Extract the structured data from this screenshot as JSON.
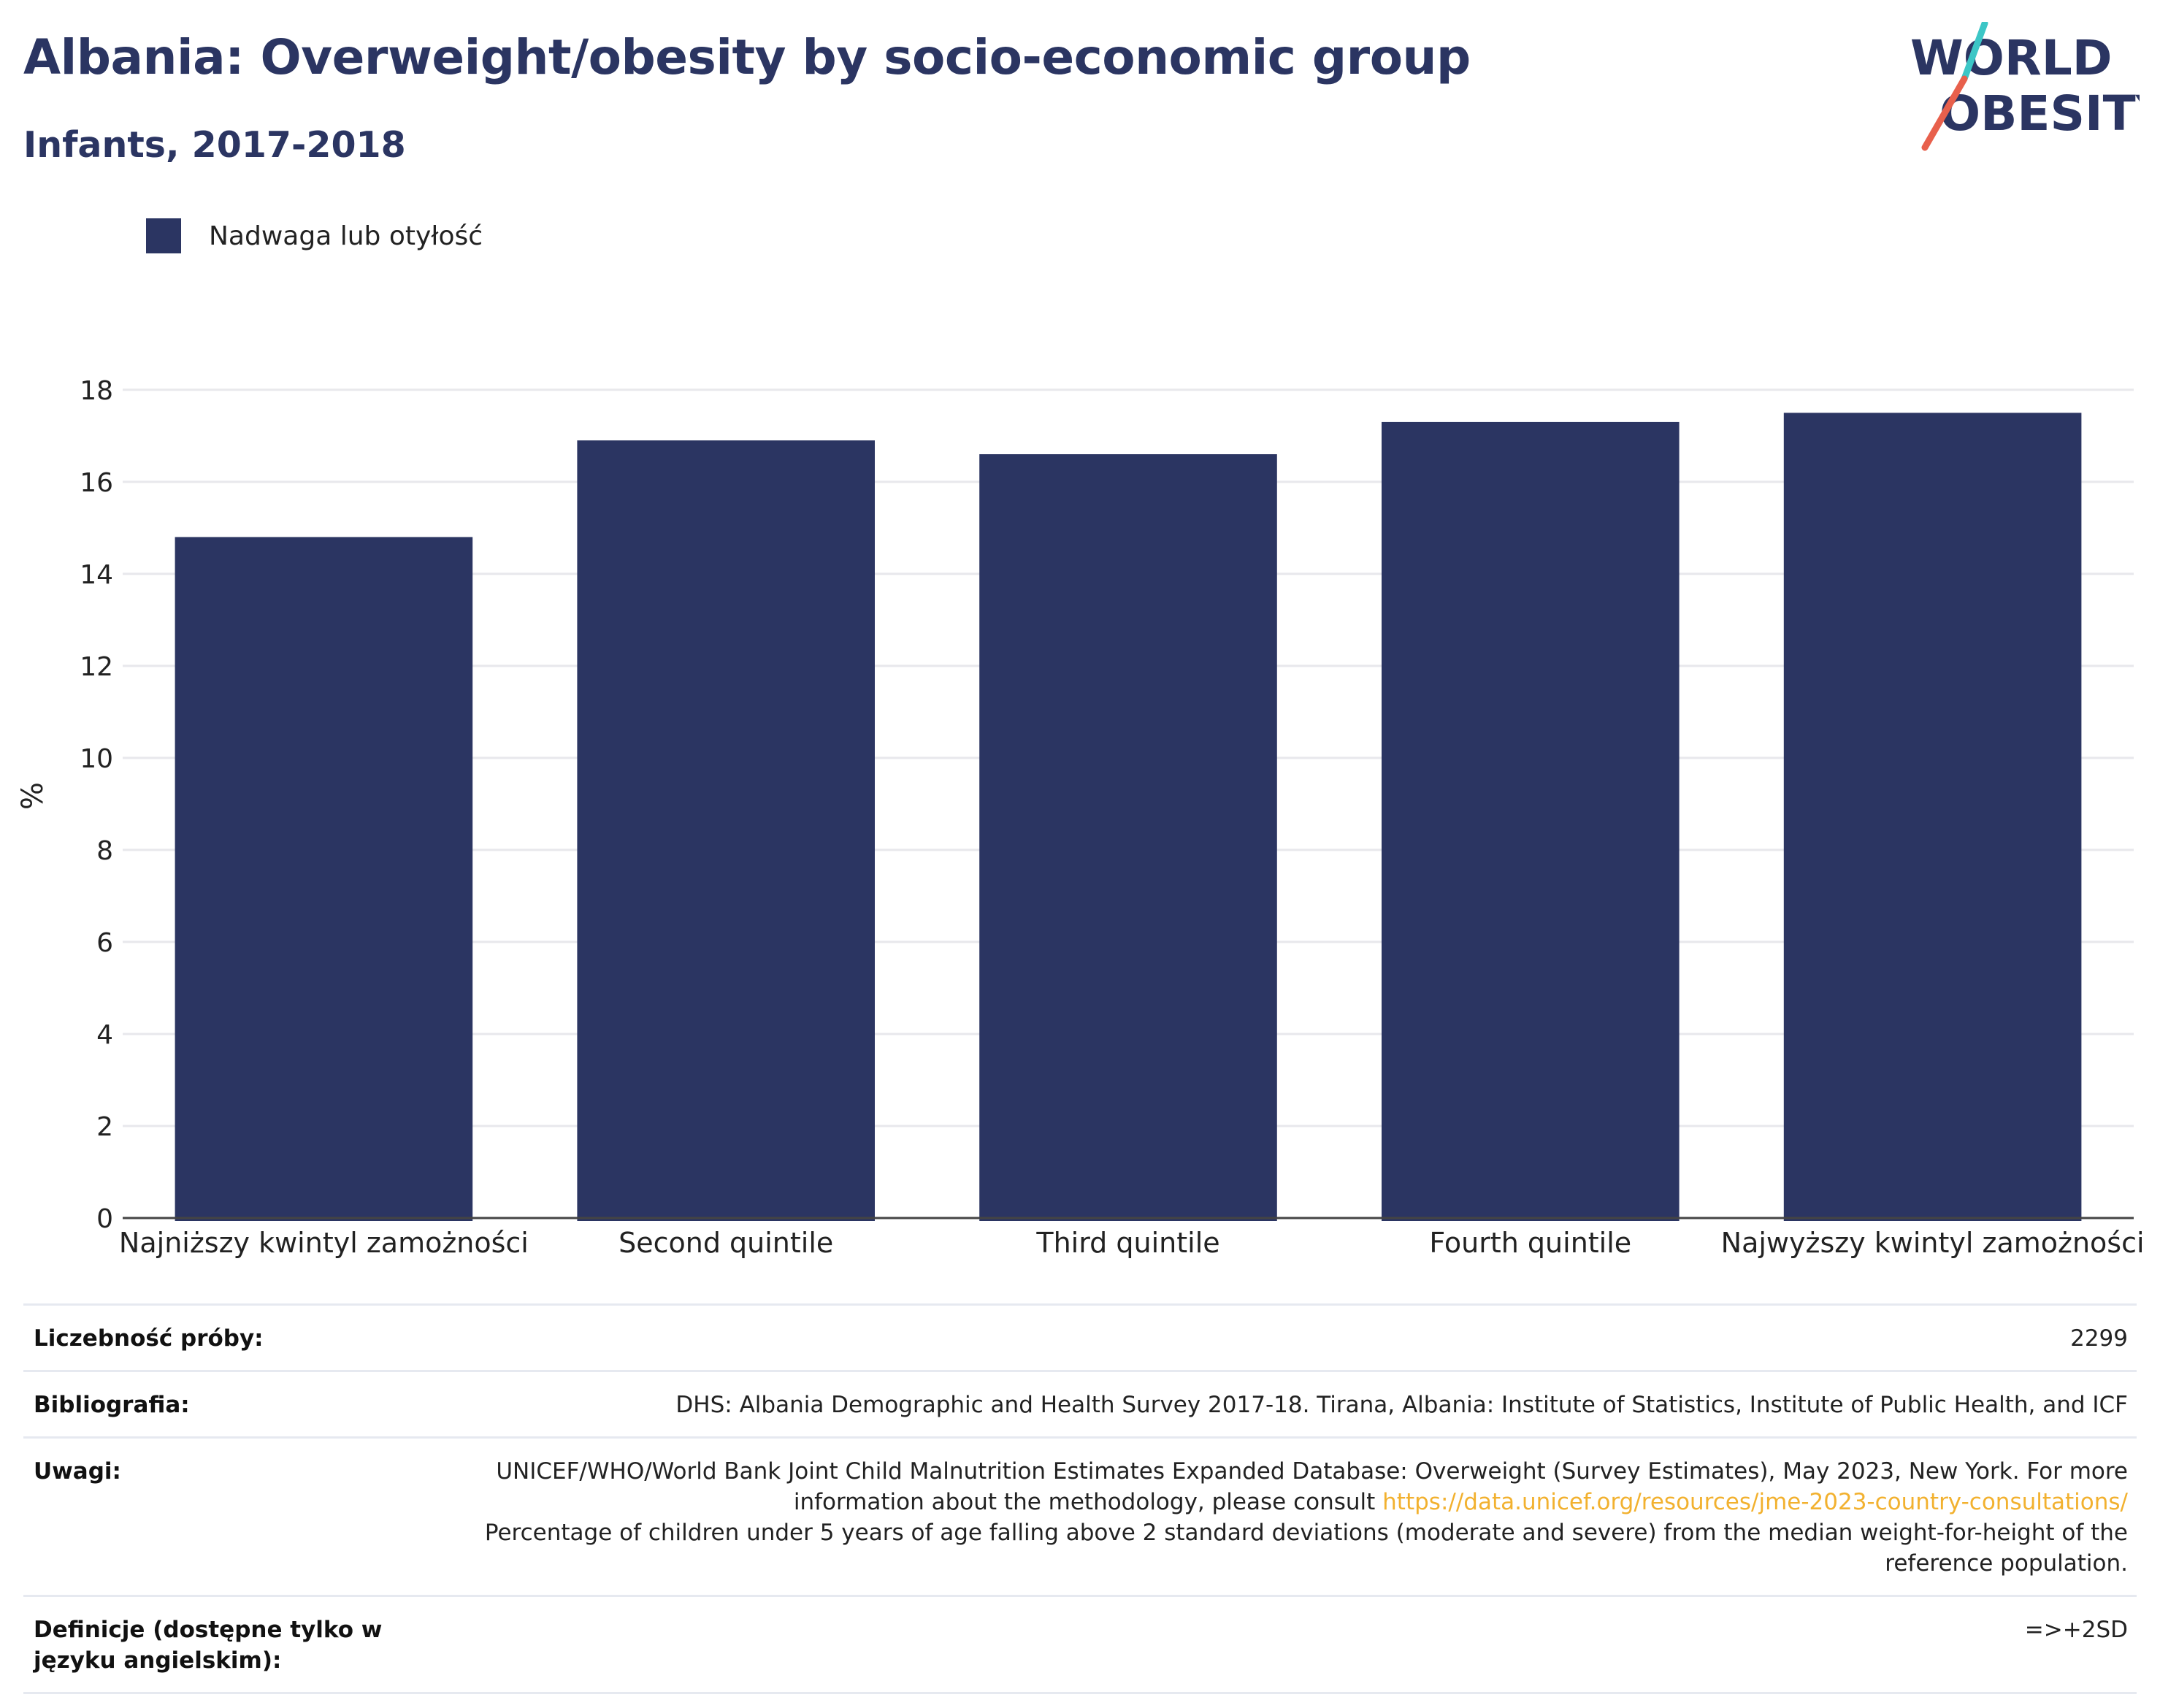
{
  "header": {
    "title": "Albania: Overweight/obesity by socio-economic group",
    "subtitle": "Infants, 2017-2018"
  },
  "logo": {
    "line1": "WORLD",
    "line2": "OBESITY",
    "slash_colors": [
      "#3cc6c6",
      "#e8604c"
    ]
  },
  "colors": {
    "bar": "#2b3562",
    "title": "#2b3562",
    "link": "#f2b12f",
    "grid": "#e8e8ec"
  },
  "chart_data": {
    "type": "bar",
    "title": "Albania: Overweight/obesity by socio-economic group",
    "subtitle": "Infants, 2017-2018",
    "categories": [
      "Najniższy kwintyl zamożności",
      "Second quintile",
      "Third quintile",
      "Fourth quintile",
      "Najwyższy kwintyl zamożności"
    ],
    "series": [
      {
        "name": "Nadwaga lub otyłość",
        "values": [
          14.8,
          16.9,
          16.6,
          17.3,
          17.5
        ]
      }
    ],
    "ylabel": "%",
    "xlabel": "",
    "ylim": [
      0,
      18.6
    ],
    "yticks": [
      "0",
      "2",
      "4",
      "6",
      "8",
      "10",
      "12",
      "14",
      "16",
      "18"
    ],
    "grid": true,
    "legend_position": "top-left"
  },
  "info": {
    "sample_label": "Liczebność próby:",
    "sample_value": "2299",
    "biblio_label": "Bibliografia:",
    "biblio_value": "DHS: Albania Demographic and Health Survey 2017-18. Tirana, Albania: Institute of Statistics, Institute of Public Health, and ICF",
    "notes_label": "Uwagi:",
    "notes_text1": "UNICEF/WHO/World Bank Joint Child Malnutrition Estimates Expanded Database: Overweight (Survey Estimates), May 2023, New York. For more information about the methodology, please consult",
    "notes_link": "https://data.unicef.org/resources/jme-2023-country-consultations/",
    "notes_text2": "Percentage of children under 5 years of age falling above 2 standard deviations (moderate and severe) from the median weight-for-height of the reference population.",
    "def_label": "Definicje (dostępne tylko w języku angielskim):",
    "def_value": "=>+2SD"
  }
}
